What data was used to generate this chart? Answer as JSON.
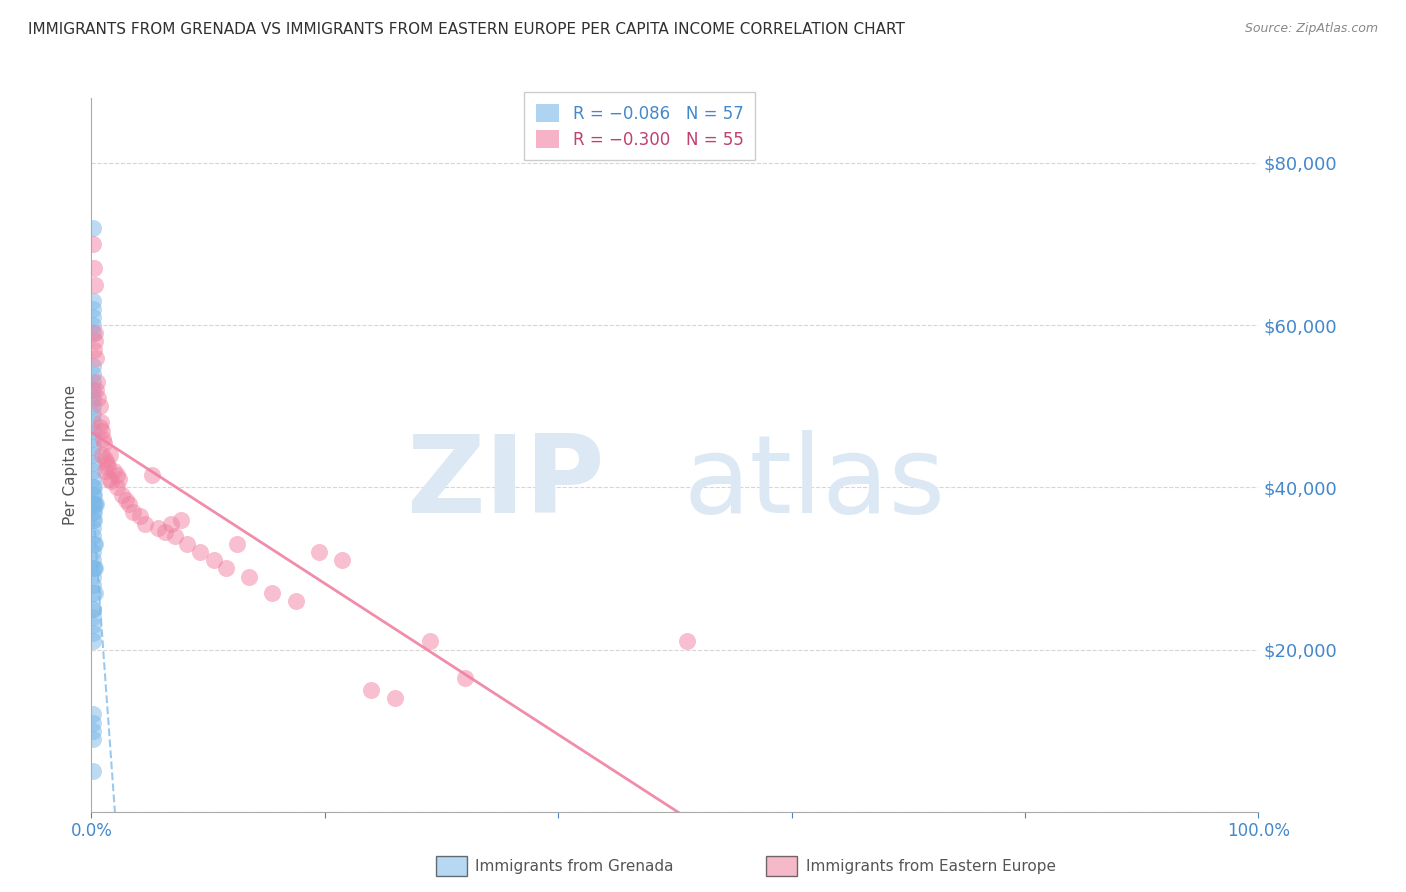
{
  "title": "IMMIGRANTS FROM GRENADA VS IMMIGRANTS FROM EASTERN EUROPE PER CAPITA INCOME CORRELATION CHART",
  "source": "Source: ZipAtlas.com",
  "ylabel": "Per Capita Income",
  "ymax": 88000,
  "ymin": 0,
  "xmin": 0.0,
  "xmax": 1.0,
  "grenada_color": "#7ab8e8",
  "eastern_color": "#f080a0",
  "axis_label_color": "#4488cc",
  "grid_color": "#cccccc",
  "title_color": "#303030",
  "grenada_x": [
    0.001,
    0.001,
    0.001,
    0.001,
    0.001,
    0.001,
    0.001,
    0.001,
    0.001,
    0.001,
    0.001,
    0.001,
    0.001,
    0.001,
    0.001,
    0.001,
    0.001,
    0.001,
    0.001,
    0.001,
    0.001,
    0.001,
    0.001,
    0.001,
    0.001,
    0.001,
    0.001,
    0.001,
    0.002,
    0.002,
    0.002,
    0.002,
    0.002,
    0.002,
    0.002,
    0.003,
    0.003,
    0.003,
    0.003,
    0.004,
    0.001,
    0.001,
    0.001,
    0.001,
    0.001,
    0.001,
    0.001,
    0.001,
    0.001,
    0.001,
    0.001,
    0.001,
    0.001,
    0.001,
    0.001,
    0.001,
    0.001
  ],
  "grenada_y": [
    72000,
    63000,
    62000,
    61000,
    60000,
    59000,
    55000,
    54000,
    53000,
    52000,
    51000,
    50000,
    49000,
    48000,
    47000,
    46000,
    45000,
    44000,
    43000,
    42000,
    41000,
    40000,
    39000,
    38000,
    37000,
    36000,
    35000,
    34000,
    40000,
    39000,
    38000,
    37000,
    36000,
    33000,
    30000,
    38000,
    33000,
    30000,
    27000,
    38000,
    32000,
    31000,
    29000,
    28000,
    25000,
    24000,
    23000,
    21000,
    12000,
    11000,
    10000,
    9000,
    5000,
    30000,
    27000,
    25000,
    22000
  ],
  "eastern_x": [
    0.001,
    0.002,
    0.003,
    0.003,
    0.002,
    0.004,
    0.005,
    0.004,
    0.006,
    0.007,
    0.008,
    0.007,
    0.009,
    0.01,
    0.011,
    0.009,
    0.012,
    0.013,
    0.014,
    0.016,
    0.012,
    0.015,
    0.017,
    0.019,
    0.022,
    0.024,
    0.026,
    0.022,
    0.03,
    0.032,
    0.036,
    0.042,
    0.046,
    0.052,
    0.057,
    0.063,
    0.068,
    0.072,
    0.077,
    0.082,
    0.093,
    0.105,
    0.115,
    0.125,
    0.135,
    0.155,
    0.175,
    0.195,
    0.215,
    0.24,
    0.26,
    0.29,
    0.32,
    0.51,
    0.003
  ],
  "eastern_y": [
    70000,
    67000,
    65000,
    58000,
    57000,
    56000,
    53000,
    52000,
    51000,
    50000,
    48000,
    47500,
    47000,
    46000,
    45500,
    44000,
    43500,
    43000,
    42500,
    44000,
    42000,
    41000,
    40800,
    42000,
    41500,
    41000,
    39000,
    40000,
    38500,
    38000,
    37000,
    36500,
    35500,
    41500,
    35000,
    34500,
    35500,
    34000,
    36000,
    33000,
    32000,
    31000,
    30000,
    33000,
    29000,
    27000,
    26000,
    32000,
    31000,
    15000,
    14000,
    21000,
    16500,
    21000,
    59000
  ]
}
